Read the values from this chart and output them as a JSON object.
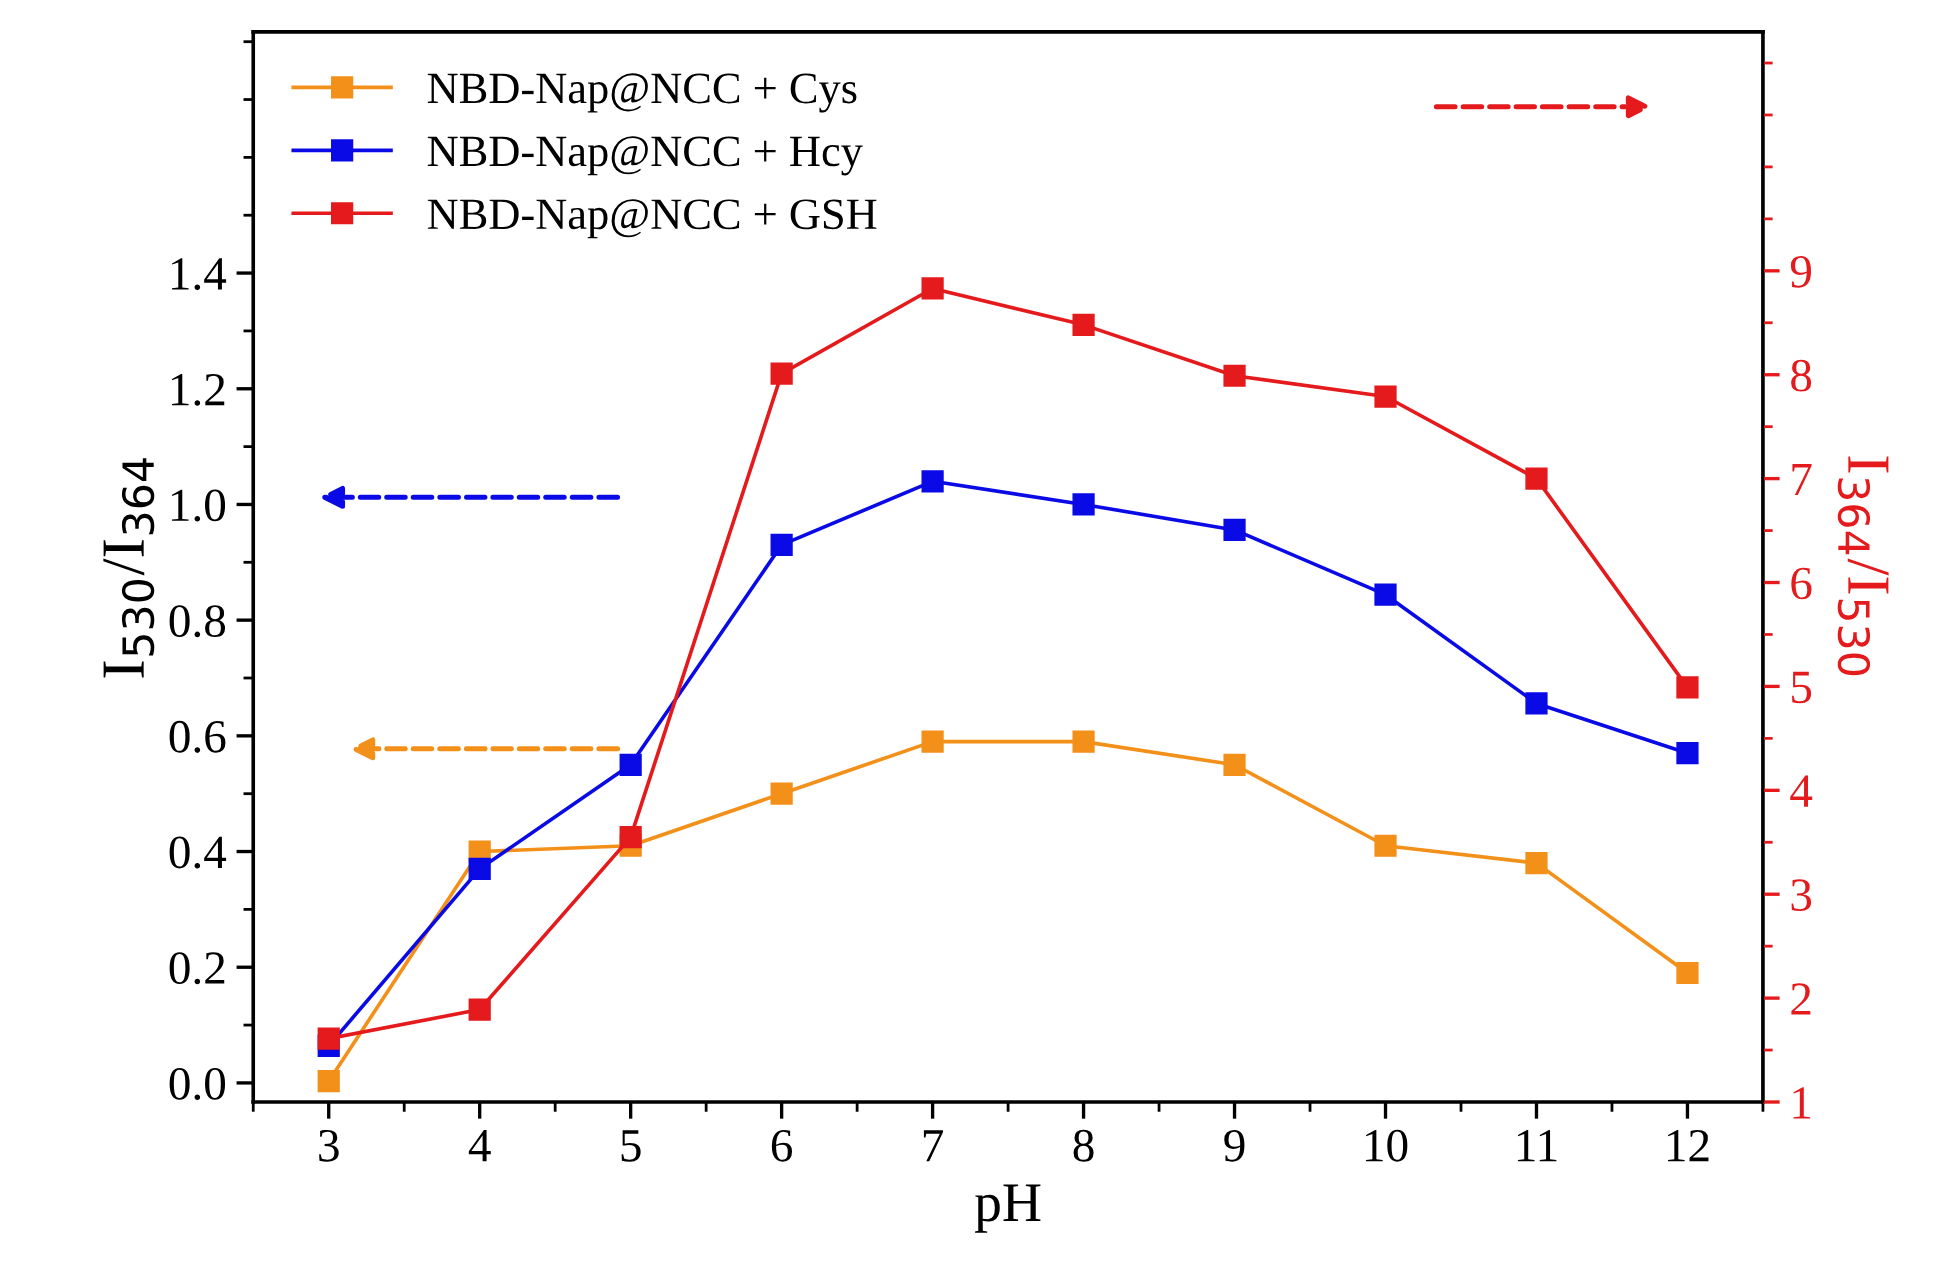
{
  "chart_data": {
    "type": "line",
    "xlabel": "pH",
    "ylabel": "I$_{530}$/I$_{364}$",
    "y2label": "I$_{364}$/I$_{530}$",
    "x": [
      3,
      4,
      5,
      6,
      7,
      8,
      9,
      10,
      11,
      12
    ],
    "xlim": [
      2.5,
      12.5
    ],
    "xticks": [
      3,
      4,
      5,
      6,
      7,
      8,
      9,
      10,
      11,
      12
    ],
    "ylim": [
      -0.033,
      1.817
    ],
    "yticks": [
      {
        "value": 0,
        "label": "0.0"
      },
      0.2,
      0.4,
      0.6,
      0.8,
      {
        "value": 1,
        "label": "1.0"
      },
      1.2,
      1.4
    ],
    "y2lim": [
      1,
      11.3
    ],
    "y2ticks": [
      1,
      2,
      3,
      4,
      5,
      6,
      7,
      8,
      9
    ],
    "marker": "square",
    "line_style": "solid",
    "grid": false,
    "legend": "top left",
    "series": [
      {
        "name": "NBD-Nap@NCC + Cys",
        "color": "#f39019",
        "values": [
          0.003,
          0.4,
          0.41,
          0.5,
          0.59,
          0.59,
          0.55,
          0.41,
          0.38,
          0.19
        ]
      },
      {
        "name": "NBD-Nap@NCC + Hcy",
        "color": "#0a0ae6",
        "values": [
          0.064,
          0.37,
          0.55,
          0.93,
          1.04,
          1.0,
          0.956,
          0.844,
          0.656,
          0.57
        ]
      },
      {
        "name": "NBD-Nap@NCC + GSH",
        "color": "#e41a1c",
        "axis": "y2",
        "values": [
          1.61,
          1.89,
          3.55,
          8.01,
          8.83,
          8.48,
          7.99,
          7.79,
          7.0,
          4.99
        ]
      }
    ]
  }
}
